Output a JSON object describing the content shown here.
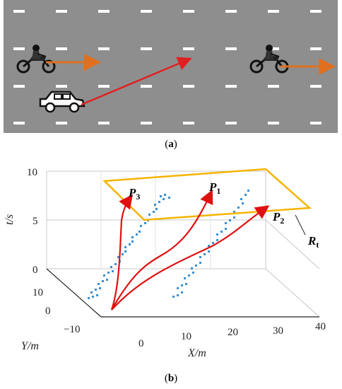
{
  "figure": {
    "caption_a": "(a)",
    "caption_b": "(b)",
    "caption_a_letter": "a",
    "caption_b_letter": "b"
  },
  "scene": {
    "road_color": "#8e8e8e",
    "lane_marking_color": "#ffffff",
    "motorcycle_arrow_color": "#e07020",
    "car_arrow_color": "#e02020"
  },
  "plot3d": {
    "t_ticks": [
      "0",
      "5",
      "10"
    ],
    "y_ticks": [
      "10",
      "0",
      "−10"
    ],
    "x_ticks": [
      "0",
      "10",
      "20",
      "30",
      "40"
    ],
    "t_label": "t/s",
    "y_label": "Y/m",
    "x_label": "X/m",
    "paths": [
      {
        "label": "P",
        "sub": "3",
        "color": "#e01010"
      },
      {
        "label": "P",
        "sub": "1",
        "color": "#e01010"
      },
      {
        "label": "P",
        "sub": "2",
        "color": "#e01010"
      }
    ],
    "region_label": "R",
    "region_sub": "t",
    "region_color": "#f5b400",
    "occupancy_color": "#3a8fd0"
  }
}
